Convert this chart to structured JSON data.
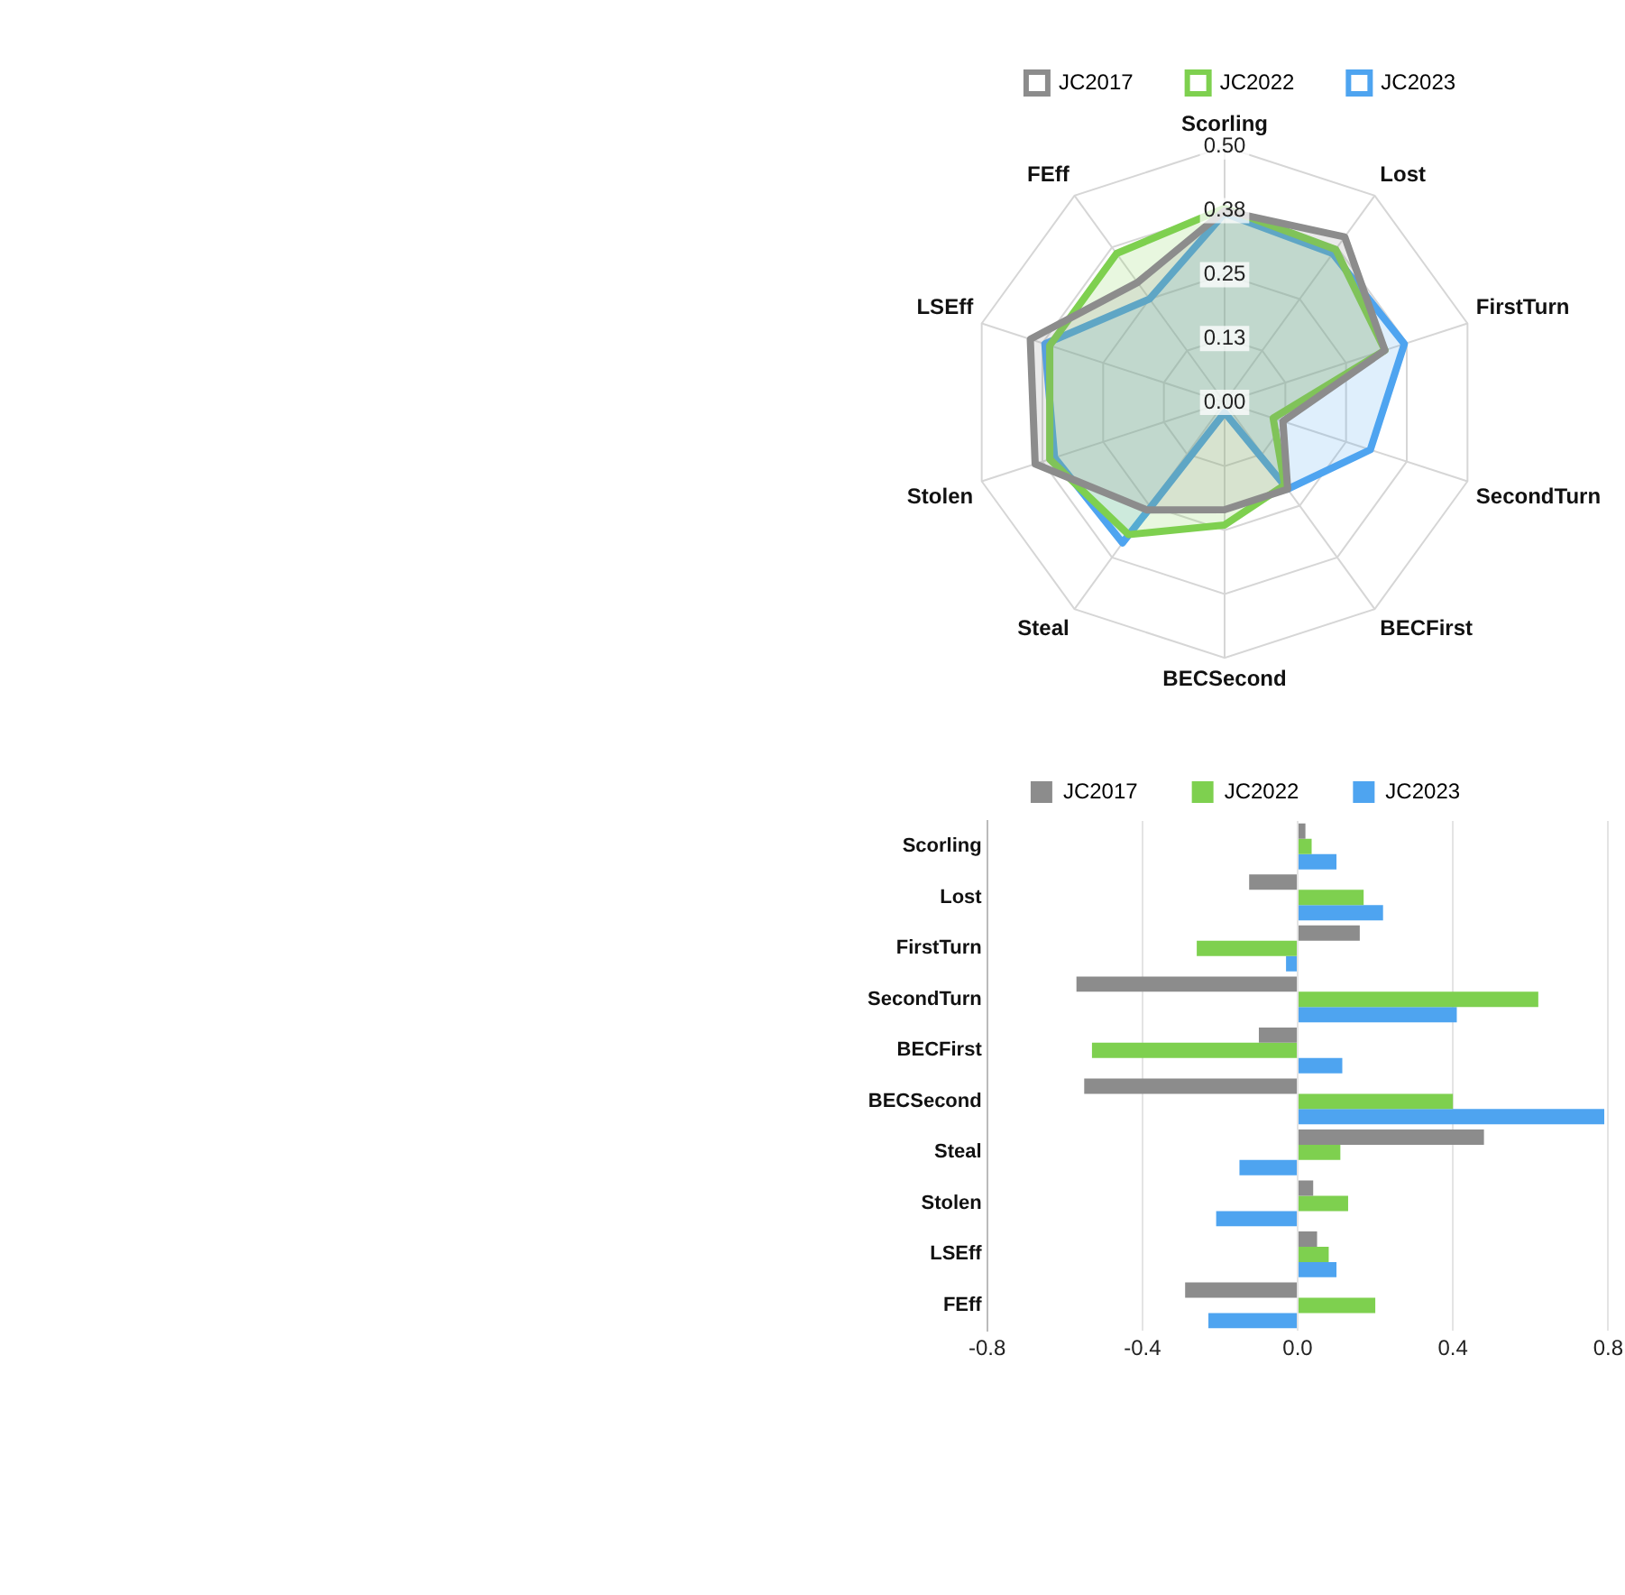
{
  "chart_data": [
    {
      "type": "radar",
      "categories": [
        "Scorling",
        "Lost",
        "FirstTurn",
        "SecondTurn",
        "BECFirst",
        "BECSecond",
        "Steal",
        "Stolen",
        "LSEff",
        "FEff"
      ],
      "series": [
        {
          "name": "JC2017",
          "color": "#8c8c8c",
          "values": [
            0.375,
            0.4,
            0.33,
            0.12,
            0.21,
            0.21,
            0.26,
            0.39,
            0.4,
            0.29
          ]
        },
        {
          "name": "JC2022",
          "color": "#7ed04f",
          "values": [
            0.38,
            0.37,
            0.33,
            0.1,
            0.2,
            0.24,
            0.32,
            0.36,
            0.36,
            0.36
          ]
        },
        {
          "name": "JC2023",
          "color": "#4ea4f0",
          "values": [
            0.37,
            0.36,
            0.37,
            0.3,
            0.21,
            0.02,
            0.34,
            0.35,
            0.37,
            0.25
          ]
        }
      ],
      "ylim": [
        0,
        0.5
      ],
      "yticks": [
        {
          "value": 0,
          "label": "0.00"
        },
        {
          "value": 0.125,
          "label": "0.13"
        },
        0.25,
        {
          "value": 0.375,
          "label": "0.38"
        },
        {
          "value": 0.5,
          "label": "0.50"
        }
      ],
      "grid": true,
      "legend": "top"
    },
    {
      "type": "bar",
      "orientation": "horizontal",
      "categories": [
        "Scorling",
        "Lost",
        "FirstTurn",
        "SecondTurn",
        "BECFirst",
        "BECSecond",
        "Steal",
        "Stolen",
        "LSEff",
        "FEff"
      ],
      "series": [
        {
          "name": "JC2017",
          "color": "#8c8c8c",
          "values": [
            0.02,
            -0.125,
            0.16,
            -0.57,
            -0.1,
            -0.55,
            0.48,
            0.04,
            0.05,
            -0.29
          ]
        },
        {
          "name": "JC2022",
          "color": "#7ed04f",
          "values": [
            0.036,
            0.17,
            -0.26,
            0.62,
            -0.53,
            0.4,
            0.11,
            0.13,
            0.08,
            0.2
          ]
        },
        {
          "name": "JC2023",
          "color": "#4ea4f0",
          "values": [
            0.1,
            0.22,
            -0.03,
            0.41,
            0.115,
            0.79,
            -0.15,
            -0.21,
            0.1,
            -0.23
          ]
        }
      ],
      "xlim": [
        -0.8,
        0.8
      ],
      "xticks": [
        -0.8,
        -0.4,
        {
          "value": 0,
          "label": "0.0"
        },
        0.4,
        0.8
      ],
      "grid": "x",
      "legend": "top"
    }
  ]
}
